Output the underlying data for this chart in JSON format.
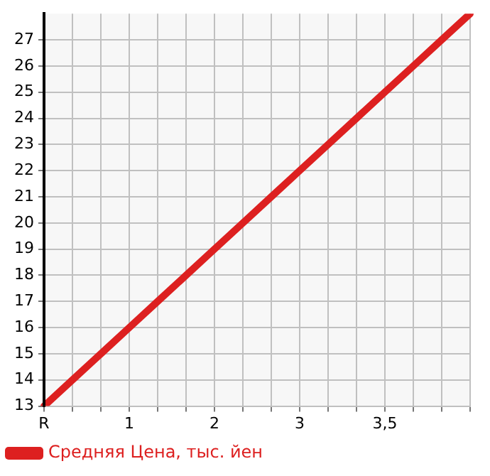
{
  "chart_data": {
    "type": "line",
    "categories": [
      "R",
      null,
      null,
      "1",
      null,
      null,
      "2",
      null,
      null,
      "3",
      null,
      null,
      "3,5",
      null,
      null,
      null
    ],
    "series": [
      {
        "name": "Средняя Цена, тыс. йен",
        "color": "#dd2020",
        "values": [
          13,
          14,
          15,
          16,
          17,
          18,
          19,
          20,
          21,
          22,
          23,
          24,
          25,
          26,
          27,
          28
        ]
      }
    ],
    "ylim": [
      13,
      28
    ],
    "yticks": [
      13,
      14,
      15,
      16,
      17,
      18,
      19,
      20,
      21,
      22,
      23,
      24,
      25,
      26,
      27
    ],
    "grid": true,
    "legend": "bottom left",
    "marker": "none",
    "line_style": "solid"
  }
}
